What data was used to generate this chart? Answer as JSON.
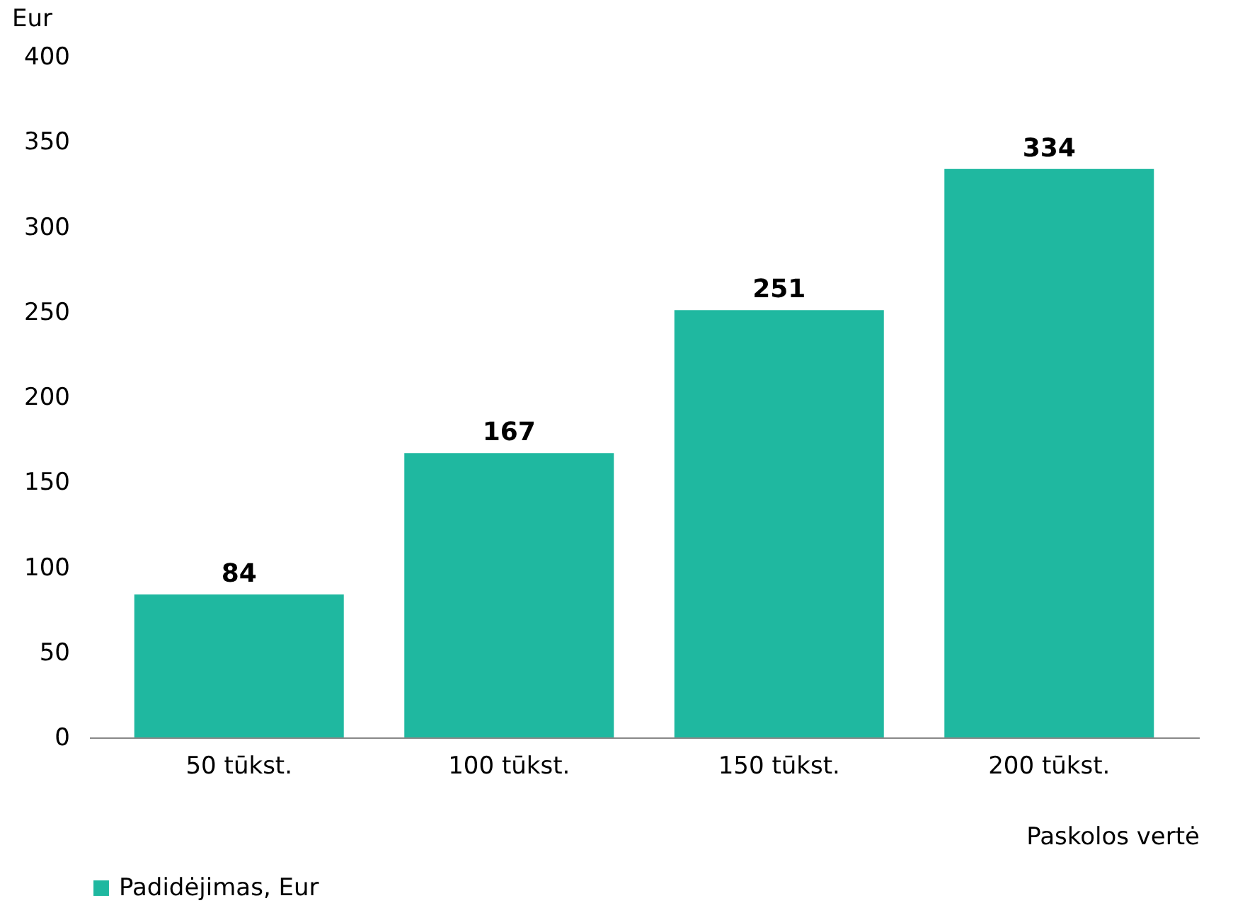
{
  "chart_data": {
    "type": "bar",
    "ylabel": "Eur",
    "xlabel": "Paskolos vertė",
    "categories": [
      "50 tūkst.",
      "100 tūkst.",
      "150 tūkst.",
      "200 tūkst."
    ],
    "series": [
      {
        "name": "Padidėjimas, Eur",
        "color": "#1fb8a0",
        "values": [
          84,
          167,
          251,
          334
        ]
      }
    ],
    "ylim": [
      0,
      400
    ],
    "yticks": [
      0,
      50,
      100,
      150,
      200,
      250,
      300,
      350,
      400
    ],
    "data_labels": true,
    "grid": false,
    "legend": "bottom left"
  }
}
